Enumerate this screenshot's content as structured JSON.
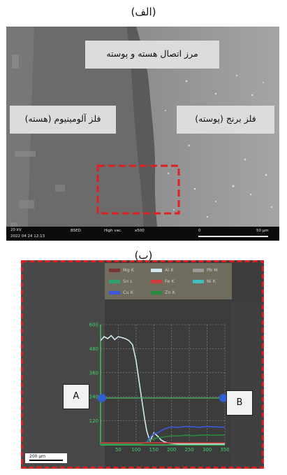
{
  "captions": {
    "a": "(الف)",
    "b": "(ب)"
  },
  "panel_a": {
    "labels": {
      "interface": "مرز اتصال هسته و پوسته",
      "core": "فلز آلومینیوم (هسته)",
      "shell": "فلز برنج (پوسته)"
    },
    "footer": {
      "voltage": "20 kV",
      "date": "2022 04 24 12:13",
      "detector": "BSED",
      "vacuum": "High vac.",
      "magnification": "x500",
      "scale_start": "0",
      "scale_end": "50 µm"
    },
    "highlight_color": "#e02020"
  },
  "panel_b": {
    "legend": [
      {
        "name": "Mg K",
        "color": "#7a3434"
      },
      {
        "name": "Al K",
        "color": "#cfe8f0"
      },
      {
        "name": "Pb M",
        "color": "#9a9a9a"
      },
      {
        "name": "Sn L",
        "color": "#2fa070"
      },
      {
        "name": "Fe K",
        "color": "#d23c3c"
      },
      {
        "name": "Ni K",
        "color": "#3fbfc0"
      },
      {
        "name": "Cu K",
        "color": "#3a5ad8"
      },
      {
        "name": "Zn K",
        "color": "#2c8a3c"
      }
    ],
    "marker_a": "A",
    "marker_b": "B",
    "scale_label": "200 µm",
    "border_color": "#e02020"
  },
  "chart_data": {
    "type": "line",
    "title": "",
    "xlabel": "",
    "ylabel": "",
    "x_ticks": [
      50,
      100,
      150,
      200,
      250,
      300,
      350
    ],
    "y_ticks": [
      120,
      240,
      360,
      480,
      600
    ],
    "xlim": [
      0,
      350
    ],
    "ylim": [
      0,
      600
    ],
    "series": [
      {
        "name": "Al K",
        "color": "#cfe8f0",
        "x": [
          0,
          10,
          20,
          30,
          40,
          50,
          60,
          70,
          80,
          90,
          100,
          110,
          120,
          125,
          130,
          135,
          140,
          145,
          150,
          160,
          170,
          180,
          190,
          200,
          220,
          240,
          260,
          280,
          300,
          320,
          350
        ],
        "y": [
          520,
          540,
          530,
          545,
          525,
          540,
          535,
          530,
          520,
          500,
          420,
          300,
          180,
          120,
          70,
          40,
          20,
          40,
          60,
          45,
          25,
          15,
          10,
          8,
          5,
          5,
          5,
          5,
          5,
          5,
          5
        ]
      },
      {
        "name": "Cu K",
        "color": "#3a5ad8",
        "x": [
          0,
          50,
          100,
          120,
          130,
          140,
          150,
          160,
          170,
          180,
          190,
          200,
          220,
          240,
          260,
          280,
          300,
          320,
          350
        ],
        "y": [
          5,
          5,
          5,
          8,
          15,
          40,
          55,
          60,
          70,
          80,
          85,
          90,
          88,
          92,
          90,
          88,
          92,
          90,
          88
        ]
      },
      {
        "name": "Zn K",
        "color": "#2c8a3c",
        "x": [
          0,
          50,
          100,
          120,
          130,
          140,
          150,
          160,
          180,
          200,
          220,
          240,
          260,
          280,
          300,
          320,
          350
        ],
        "y": [
          5,
          5,
          5,
          8,
          12,
          25,
          30,
          35,
          40,
          45,
          45,
          48,
          46,
          48,
          50,
          48,
          50
        ]
      },
      {
        "name": "Fe K",
        "color": "#d23c3c",
        "x": [
          0,
          50,
          100,
          150,
          200,
          250,
          300,
          350
        ],
        "y": [
          10,
          10,
          10,
          10,
          10,
          10,
          10,
          10
        ]
      }
    ]
  }
}
